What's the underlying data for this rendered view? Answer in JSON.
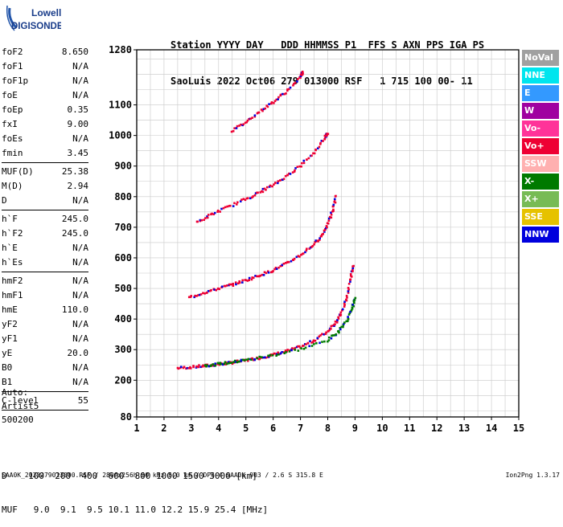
{
  "brand": {
    "top": "Lowell",
    "bottom": "DIGISONDE"
  },
  "header": {
    "line1": "Station YYYY DAY   DDD HHMMSS P1  FFS S AXN PPS IGA PS",
    "line2": "SaoLuis 2022 Oct06 279 013000 RSF   1 715 100 00- 11"
  },
  "params_group1": [
    {
      "name": "foF2",
      "value": "8.650"
    },
    {
      "name": "foF1",
      "value": "N/A"
    },
    {
      "name": "foF1p",
      "value": "N/A"
    },
    {
      "name": "foE",
      "value": "N/A"
    },
    {
      "name": "foEp",
      "value": "0.35"
    },
    {
      "name": "fxI",
      "value": "9.00"
    },
    {
      "name": "foEs",
      "value": "N/A"
    },
    {
      "name": "fmin",
      "value": "3.45"
    }
  ],
  "params_group2": [
    {
      "name": "MUF(D)",
      "value": "25.38"
    },
    {
      "name": "M(D)",
      "value": "2.94"
    },
    {
      "name": "D",
      "value": "N/A"
    }
  ],
  "params_group3": [
    {
      "name": "h`F",
      "value": "245.0"
    },
    {
      "name": "h`F2",
      "value": "245.0"
    },
    {
      "name": "h`E",
      "value": "N/A"
    },
    {
      "name": "h`Es",
      "value": "N/A"
    }
  ],
  "params_group4": [
    {
      "name": "hmF2",
      "value": "N/A"
    },
    {
      "name": "hmF1",
      "value": "N/A"
    },
    {
      "name": "hmE",
      "value": "110.0"
    },
    {
      "name": "yF2",
      "value": "N/A"
    },
    {
      "name": "yF1",
      "value": "N/A"
    },
    {
      "name": "yE",
      "value": "20.0"
    },
    {
      "name": "B0",
      "value": "N/A"
    },
    {
      "name": "B1",
      "value": "N/A"
    }
  ],
  "params_group5": [
    {
      "name": "C-level",
      "value": "55"
    }
  ],
  "auto": {
    "line1": "Auto:",
    "line2": "Artist5",
    "line3": "500200"
  },
  "legend": [
    {
      "label": "NoVal",
      "color": "#a0a0a0"
    },
    {
      "label": "NNE",
      "color": "#00e5ee"
    },
    {
      "label": "E",
      "color": "#3399ff"
    },
    {
      "label": "W",
      "color": "#a000a0"
    },
    {
      "label": "Vo-",
      "color": "#ff3399"
    },
    {
      "label": "Vo+",
      "color": "#ee0033"
    },
    {
      "label": "SSW",
      "color": "#ffb0b0"
    },
    {
      "label": "X-",
      "color": "#007a00"
    },
    {
      "label": "X+",
      "color": "#77bb55"
    },
    {
      "label": "SSE",
      "color": "#e6c200"
    },
    {
      "label": "NNW",
      "color": "#0000dd"
    }
  ],
  "footer": {
    "row1": "D    100  200  400  600  800 1000 1500 3000 [km]",
    "row2": "MUF   9.0  9.1  9.5 10.1 11.0 12.2 15.9 25.4 [MHz]",
    "file": "SAA0K_2022279013000.RSF / 280fx256h 50 kHz 5.0 km / DPS-4 SAA0K 903 / 2.6 S 315.8 E",
    "version": "Ion2Png 1.3.17"
  },
  "chart_data": {
    "type": "scatter",
    "x_ticks": [
      "1",
      "2",
      "3",
      "4",
      "5",
      "6",
      "7",
      "8",
      "9",
      "10",
      "11",
      "12",
      "13",
      "14",
      "15"
    ],
    "y_ticks": [
      "80",
      "200",
      "300",
      "400",
      "500",
      "600",
      "700",
      "800",
      "900",
      "1000",
      "1100",
      "1280"
    ],
    "xlim": [
      1,
      15
    ],
    "ylim": [
      80,
      1280
    ],
    "grid": true,
    "series": [
      {
        "name": "Vo+",
        "values": [
          [
            2.5,
            240
          ],
          [
            3.0,
            243
          ],
          [
            3.5,
            247
          ],
          [
            4.0,
            252
          ],
          [
            4.5,
            258
          ],
          [
            5.0,
            265
          ],
          [
            5.5,
            273
          ],
          [
            6.0,
            283
          ],
          [
            6.5,
            295
          ],
          [
            7.0,
            310
          ],
          [
            7.5,
            330
          ],
          [
            8.0,
            360
          ],
          [
            8.3,
            390
          ],
          [
            8.5,
            420
          ],
          [
            8.7,
            470
          ],
          [
            8.85,
            540
          ],
          [
            8.95,
            580
          ]
        ]
      },
      {
        "name": "X-",
        "values": [
          [
            3.5,
            248
          ],
          [
            4.0,
            253
          ],
          [
            4.5,
            259
          ],
          [
            5.0,
            266
          ],
          [
            6.0,
            282
          ],
          [
            7.0,
            302
          ],
          [
            8.0,
            330
          ],
          [
            8.4,
            360
          ],
          [
            8.7,
            395
          ],
          [
            8.9,
            440
          ],
          [
            9.0,
            470
          ]
        ]
      },
      {
        "name": "Vo+",
        "values": [
          [
            2.9,
            470
          ],
          [
            3.5,
            487
          ],
          [
            4.0,
            500
          ],
          [
            4.5,
            513
          ],
          [
            5.0,
            527
          ],
          [
            5.5,
            543
          ],
          [
            6.0,
            560
          ],
          [
            6.5,
            582
          ],
          [
            7.0,
            610
          ],
          [
            7.5,
            645
          ],
          [
            7.8,
            675
          ],
          [
            8.0,
            710
          ],
          [
            8.2,
            760
          ],
          [
            8.3,
            810
          ]
        ]
      },
      {
        "name": "Vo+",
        "values": [
          [
            3.2,
            715
          ],
          [
            3.7,
            740
          ],
          [
            4.3,
            765
          ],
          [
            5.0,
            792
          ],
          [
            5.5,
            815
          ],
          [
            6.0,
            838
          ],
          [
            6.5,
            868
          ],
          [
            7.0,
            902
          ],
          [
            7.5,
            945
          ],
          [
            7.9,
            995
          ],
          [
            8.0,
            1010
          ]
        ]
      },
      {
        "name": "Vo+",
        "values": [
          [
            4.5,
            1015
          ],
          [
            5.0,
            1045
          ],
          [
            5.5,
            1078
          ],
          [
            6.0,
            1110
          ],
          [
            6.5,
            1145
          ],
          [
            7.0,
            1190
          ],
          [
            7.1,
            1210
          ]
        ]
      }
    ]
  }
}
